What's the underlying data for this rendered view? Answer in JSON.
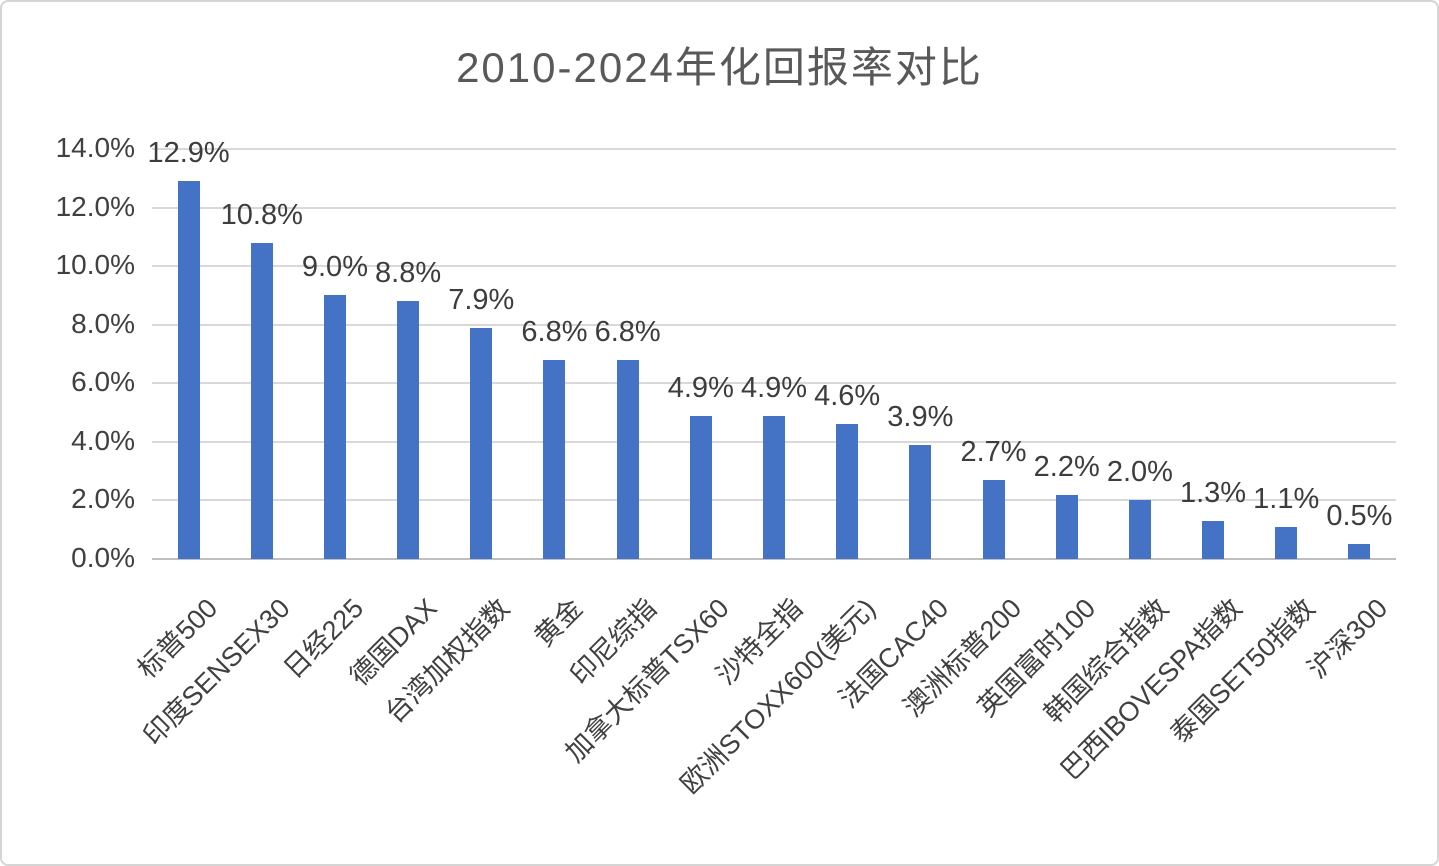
{
  "chart_data": {
    "type": "bar",
    "title": "2010-2024年化回报率对比",
    "categories": [
      "标普500",
      "印度SENSEX30",
      "日经225",
      "德国DAX",
      "台湾加权指数",
      "黄金",
      "印尼综指",
      "加拿大标普TSX60",
      "沙特全指",
      "欧洲STOXX600(美元)",
      "法国CAC40",
      "澳洲标普200",
      "英国富时100",
      "韩国综合指数",
      "巴西IBOVESPA指数",
      "泰国SET50指数",
      "沪深300"
    ],
    "values": [
      12.9,
      10.8,
      9.0,
      8.8,
      7.9,
      6.8,
      6.8,
      4.9,
      4.9,
      4.6,
      3.9,
      2.7,
      2.2,
      2.0,
      1.3,
      1.1,
      0.5
    ],
    "value_labels": [
      "12.9%",
      "10.8%",
      "9.0%",
      "8.8%",
      "7.9%",
      "6.8%",
      "6.8%",
      "4.9%",
      "4.9%",
      "4.6%",
      "3.9%",
      "2.7%",
      "2.2%",
      "2.0%",
      "1.3%",
      "1.1%",
      "0.5%"
    ],
    "y_ticks": [
      "0.0%",
      "2.0%",
      "4.0%",
      "6.0%",
      "8.0%",
      "10.0%",
      "12.0%",
      "14.0%"
    ],
    "ylim": [
      0,
      14
    ],
    "xlabel": "",
    "ylabel": "",
    "grid": true,
    "legend": "none",
    "bar_color": "#4472c4",
    "grid_color": "#d9d9d9",
    "axis_line_color": "#bfbfbf",
    "title_color": "#595959",
    "label_color": "#404040"
  }
}
